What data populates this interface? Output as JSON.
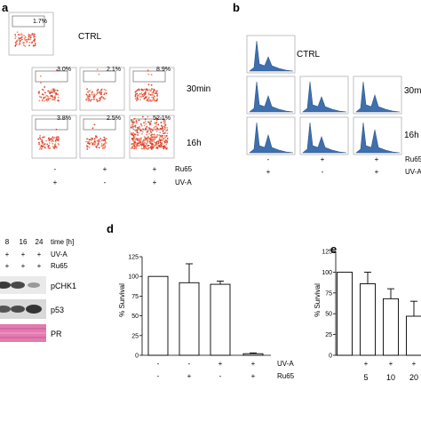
{
  "panels": {
    "a": {
      "letter": "a",
      "row_labels": [
        "CTRL",
        "30min",
        "16h"
      ],
      "percentages": {
        "ctrl": "1.7%",
        "min30": [
          "3.0%",
          "2.1%",
          "8.9%"
        ],
        "h16": [
          "3.8%",
          "2.5%",
          "52.1%"
        ]
      },
      "ru65_label": "Ru65",
      "uva_label": "UV-A",
      "ru65_signs": [
        "-",
        "+",
        "+"
      ],
      "uva_signs": [
        "+",
        "-",
        "+"
      ]
    },
    "b": {
      "letter": "b",
      "row_labels": [
        "CTRL",
        "30min",
        "16h"
      ],
      "ru65_label": "Ru65",
      "uva_label": "UV-A",
      "ru65_signs": [
        "-",
        "+",
        "+"
      ],
      "uva_signs": [
        "+",
        "-",
        "+"
      ]
    },
    "c": {
      "header_times": [
        "8",
        "16",
        "24"
      ],
      "time_label": "time [h]",
      "uva_label": "UV-A",
      "ru65_label": "Ru65",
      "uva_signs": [
        "+",
        "+",
        "+",
        "+"
      ],
      "ru65_signs": [
        "+",
        "+",
        "+",
        "+"
      ],
      "blots": [
        "pCHK1",
        "p53",
        "PR"
      ]
    },
    "d": {
      "letter": "d",
      "uva_label": "UV-A",
      "ru65_label": "Ru65",
      "uva_signs": [
        "-",
        "-",
        "+",
        "+"
      ],
      "ru65_signs": [
        "-",
        "+",
        "-",
        "+"
      ]
    },
    "e": {
      "letter": "e",
      "plus_signs": [
        "+",
        "+",
        "+"
      ],
      "dose_labels": [
        "5",
        "10",
        "20"
      ]
    }
  },
  "chart_data": [
    {
      "type": "bar",
      "panel": "d",
      "ylabel": "% Survival",
      "ylim": [
        0,
        125
      ],
      "yticks": [
        0,
        25,
        50,
        75,
        100,
        125
      ],
      "categories": [
        "-/-",
        "-/+",
        "+/-",
        "+/+"
      ],
      "values": [
        100,
        92,
        90,
        2
      ],
      "errors": [
        0,
        24,
        4,
        1
      ]
    },
    {
      "type": "bar",
      "panel": "e",
      "ylabel": "% Survival",
      "ylim": [
        0,
        125
      ],
      "yticks": [
        0,
        25,
        50,
        75,
        100,
        125
      ],
      "categories": [
        "-",
        "5",
        "10",
        "20"
      ],
      "values": [
        100,
        86,
        68,
        47
      ],
      "errors": [
        0,
        14,
        12,
        18
      ]
    }
  ]
}
